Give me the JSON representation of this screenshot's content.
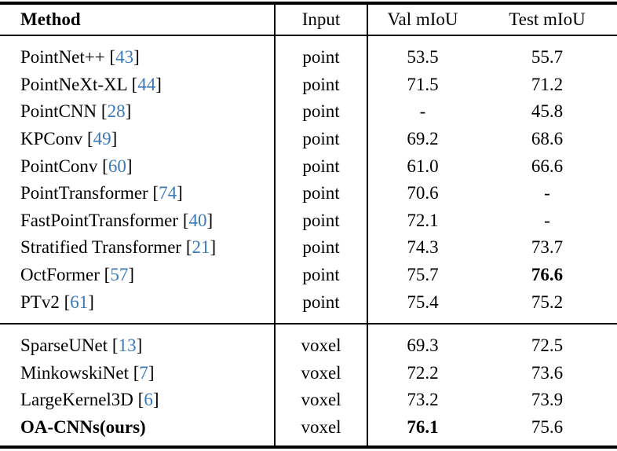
{
  "table": {
    "citation_color": "#3c78b4",
    "headers": [
      "Method",
      "Input",
      "Val mIoU",
      "Test mIoU"
    ],
    "sections": [
      {
        "rows": [
          {
            "method": "PointNet++",
            "cite": "43",
            "input": "point",
            "val": "53.5",
            "test": "55.7",
            "bold_method": false,
            "bold_val": false,
            "bold_test": false
          },
          {
            "method": "PointNeXt-XL",
            "cite": "44",
            "input": "point",
            "val": "71.5",
            "test": "71.2",
            "bold_method": false,
            "bold_val": false,
            "bold_test": false
          },
          {
            "method": "PointCNN",
            "cite": "28",
            "input": "point",
            "val": "-",
            "test": "45.8",
            "bold_method": false,
            "bold_val": false,
            "bold_test": false
          },
          {
            "method": "KPConv",
            "cite": "49",
            "input": "point",
            "val": "69.2",
            "test": "68.6",
            "bold_method": false,
            "bold_val": false,
            "bold_test": false
          },
          {
            "method": "PointConv",
            "cite": "60",
            "input": "point",
            "val": "61.0",
            "test": "66.6",
            "bold_method": false,
            "bold_val": false,
            "bold_test": false
          },
          {
            "method": "PointTransformer",
            "cite": "74",
            "input": "point",
            "val": "70.6",
            "test": "-",
            "bold_method": false,
            "bold_val": false,
            "bold_test": false
          },
          {
            "method": "FastPointTransformer",
            "cite": "40",
            "input": "point",
            "val": "72.1",
            "test": "-",
            "bold_method": false,
            "bold_val": false,
            "bold_test": false
          },
          {
            "method": "Stratified Transformer",
            "cite": "21",
            "input": "point",
            "val": "74.3",
            "test": "73.7",
            "bold_method": false,
            "bold_val": false,
            "bold_test": false
          },
          {
            "method": "OctFormer",
            "cite": "57",
            "input": "point",
            "val": "75.7",
            "test": "76.6",
            "bold_method": false,
            "bold_val": false,
            "bold_test": true
          },
          {
            "method": "PTv2",
            "cite": "61",
            "input": "point",
            "val": "75.4",
            "test": "75.2",
            "bold_method": false,
            "bold_val": false,
            "bold_test": false
          }
        ]
      },
      {
        "rows": [
          {
            "method": "SparseUNet",
            "cite": "13",
            "input": "voxel",
            "val": "69.3",
            "test": "72.5",
            "bold_method": false,
            "bold_val": false,
            "bold_test": false
          },
          {
            "method": "MinkowskiNet",
            "cite": "7",
            "input": "voxel",
            "val": "72.2",
            "test": "73.6",
            "bold_method": false,
            "bold_val": false,
            "bold_test": false
          },
          {
            "method": "LargeKernel3D",
            "cite": "6",
            "input": "voxel",
            "val": "73.2",
            "test": "73.9",
            "bold_method": false,
            "bold_val": false,
            "bold_test": false
          },
          {
            "method": "OA-CNNs(ours)",
            "cite": null,
            "input": "voxel",
            "val": "76.1",
            "test": "75.6",
            "bold_method": true,
            "bold_val": true,
            "bold_test": false
          }
        ]
      }
    ]
  }
}
